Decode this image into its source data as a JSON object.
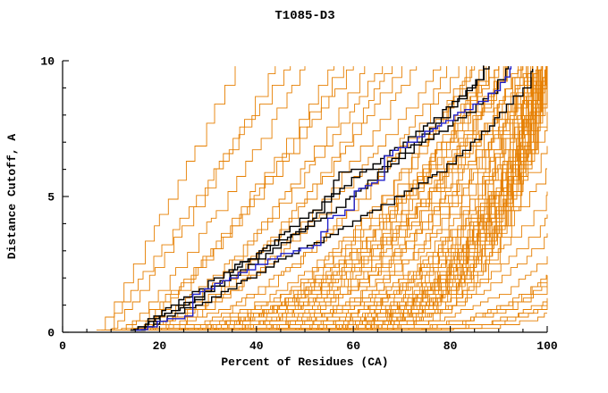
{
  "chart_data": {
    "type": "line",
    "title": "T1085-D3",
    "xlabel": "Percent of Residues (CA)",
    "ylabel": "Distance Cutoff, A",
    "xlim": [
      0,
      100
    ],
    "ylim": [
      0,
      10
    ],
    "x_ticks": [
      0,
      20,
      40,
      60,
      80,
      100
    ],
    "y_ticks": [
      0,
      5,
      10
    ],
    "x_minor_step": 5,
    "y_minor_step": 1,
    "grid": false,
    "legend": false,
    "colors": {
      "prediction_orange": "#e67f00",
      "highlight_black": "#000000",
      "highlight_blue": "#2222cc",
      "axis": "#000000",
      "background": "#ffffff"
    },
    "series_groups": {
      "orange_param_curves": {
        "format": "[x_start_percent, x_percent_at_cutoff_10, shape_exponent]",
        "curves": [
          [
            7,
            36,
            1.05
          ],
          [
            9,
            44,
            1.15
          ],
          [
            11,
            50,
            1.25
          ],
          [
            8,
            47,
            1.0
          ],
          [
            13,
            56,
            1.3
          ],
          [
            10,
            60,
            1.35
          ],
          [
            12,
            66,
            1.5
          ],
          [
            15,
            58,
            1.2
          ],
          [
            17,
            63,
            1.4
          ],
          [
            14,
            70,
            1.6
          ],
          [
            16,
            73,
            1.7
          ],
          [
            18,
            68,
            1.5
          ],
          [
            10,
            78,
            1.8
          ],
          [
            12,
            82,
            2.0
          ],
          [
            14,
            85,
            2.2
          ],
          [
            16,
            88,
            2.4
          ],
          [
            18,
            90,
            2.0
          ],
          [
            20,
            92,
            2.2
          ],
          [
            22,
            95,
            2.4
          ],
          [
            24,
            85,
            2.0
          ],
          [
            26,
            88,
            2.3
          ],
          [
            28,
            90,
            2.6
          ],
          [
            11,
            92,
            2.8
          ],
          [
            13,
            95,
            2.5
          ],
          [
            15,
            97,
            2.2
          ],
          [
            17,
            80,
            1.9
          ],
          [
            19,
            84,
            2.1
          ],
          [
            21,
            87,
            2.3
          ],
          [
            23,
            91,
            2.5
          ],
          [
            25,
            94,
            2.7
          ],
          [
            27,
            97,
            2.9
          ],
          [
            12,
            88,
            2.6
          ],
          [
            14,
            92,
            2.8
          ],
          [
            16,
            95,
            3.0
          ],
          [
            18,
            98,
            2.7
          ],
          [
            20,
            99,
            2.4
          ],
          [
            22,
            90,
            2.1
          ],
          [
            24,
            96,
            2.9
          ],
          [
            15,
            96,
            3.5
          ],
          [
            17,
            97,
            3.8
          ],
          [
            19,
            98,
            4.0
          ],
          [
            21,
            99,
            4.2
          ],
          [
            23,
            100,
            4.5
          ],
          [
            25,
            97,
            3.6
          ],
          [
            27,
            98,
            3.9
          ],
          [
            29,
            99,
            4.3
          ],
          [
            31,
            100,
            4.6
          ],
          [
            33,
            99,
            4.0
          ],
          [
            35,
            100,
            4.4
          ],
          [
            37,
            100,
            4.8
          ],
          [
            16,
            99,
            5.0
          ],
          [
            18,
            100,
            5.2
          ],
          [
            20,
            98,
            4.7
          ],
          [
            22,
            99,
            5.4
          ],
          [
            24,
            100,
            5.0
          ],
          [
            26,
            99,
            4.6
          ],
          [
            28,
            100,
            5.5
          ],
          [
            30,
            99,
            5.1
          ],
          [
            32,
            100,
            4.9
          ],
          [
            34,
            99,
            5.6
          ],
          [
            36,
            100,
            5.8
          ],
          [
            38,
            100,
            5.2
          ],
          [
            40,
            100,
            6.0
          ],
          [
            19,
            97,
            4.4
          ],
          [
            23,
            98,
            4.9
          ],
          [
            27,
            100,
            5.7
          ],
          [
            31,
            99,
            5.3
          ],
          [
            35,
            98,
            4.5
          ],
          [
            25,
            100,
            5.9
          ],
          [
            21,
            96,
            4.1
          ],
          [
            29,
            97,
            4.8
          ],
          [
            33,
            100,
            6.2
          ],
          [
            20,
            108,
            3.0
          ],
          [
            24,
            112,
            3.4
          ],
          [
            28,
            118,
            3.8
          ],
          [
            32,
            124,
            4.2
          ],
          [
            36,
            130,
            4.6
          ],
          [
            22,
            106,
            2.8
          ],
          [
            26,
            115,
            3.6
          ],
          [
            30,
            120,
            4.0
          ],
          [
            34,
            128,
            4.5
          ],
          [
            38,
            135,
            5.0
          ],
          [
            40,
            126,
            4.3
          ],
          [
            18,
            110,
            3.2
          ],
          [
            42,
            132,
            4.8
          ],
          [
            44,
            138,
            5.2
          ],
          [
            46,
            128,
            4.0
          ],
          [
            48,
            135,
            4.6
          ]
        ]
      },
      "black_curves": [
        {
          "points": [
            [
              14,
              0
            ],
            [
              20,
              0.6
            ],
            [
              25,
              1.0
            ],
            [
              30,
              1.6
            ],
            [
              35,
              2.3
            ],
            [
              40,
              2.9
            ],
            [
              45,
              3.6
            ],
            [
              50,
              4.3
            ],
            [
              55,
              5.0
            ],
            [
              60,
              5.7
            ],
            [
              65,
              6.3
            ],
            [
              70,
              7.0
            ],
            [
              75,
              7.7
            ],
            [
              80,
              8.4
            ],
            [
              85,
              9.2
            ],
            [
              88,
              9.9
            ]
          ]
        },
        {
          "points": [
            [
              15,
              0
            ],
            [
              22,
              0.8
            ],
            [
              28,
              1.3
            ],
            [
              34,
              2.0
            ],
            [
              40,
              2.7
            ],
            [
              46,
              3.4
            ],
            [
              52,
              4.3
            ],
            [
              57,
              5.9
            ],
            [
              67,
              6.1
            ],
            [
              72,
              6.8
            ],
            [
              78,
              7.4
            ],
            [
              83,
              8.1
            ],
            [
              88,
              8.8
            ],
            [
              92,
              9.8
            ]
          ]
        },
        {
          "points": [
            [
              15,
              0
            ],
            [
              23,
              0.7
            ],
            [
              31,
              1.3
            ],
            [
              39,
              2.1
            ],
            [
              47,
              2.9
            ],
            [
              54,
              3.5
            ],
            [
              60,
              4.1
            ],
            [
              66,
              4.7
            ],
            [
              72,
              5.3
            ],
            [
              78,
              6.0
            ],
            [
              83,
              6.8
            ],
            [
              88,
              7.6
            ],
            [
              92,
              8.5
            ],
            [
              95,
              9.0
            ],
            [
              97,
              9.7
            ]
          ]
        },
        {
          "points": [
            [
              14,
              0
            ],
            [
              21,
              0.9
            ],
            [
              27,
              1.5
            ],
            [
              33,
              2.2
            ],
            [
              39,
              2.8
            ],
            [
              44,
              3.3
            ],
            [
              50,
              3.9
            ],
            [
              56,
              4.5
            ],
            [
              62,
              5.4
            ],
            [
              68,
              6.4
            ],
            [
              73,
              7.1
            ],
            [
              78,
              7.9
            ],
            [
              82,
              8.7
            ],
            [
              86,
              9.4
            ],
            [
              87,
              9.9
            ]
          ]
        }
      ],
      "blue_curve": {
        "points": [
          [
            15,
            0
          ],
          [
            20,
            0.4
          ],
          [
            26,
            0.6
          ],
          [
            26.5,
            1.4
          ],
          [
            32,
            1.8
          ],
          [
            38,
            2.3
          ],
          [
            44,
            2.8
          ],
          [
            50,
            3.1
          ],
          [
            53,
            3.2
          ],
          [
            53.5,
            4.1
          ],
          [
            58,
            4.4
          ],
          [
            60.5,
            5.3
          ],
          [
            65,
            5.6
          ],
          [
            66,
            6.4
          ],
          [
            70,
            6.9
          ],
          [
            75,
            7.4
          ],
          [
            80,
            7.9
          ],
          [
            85,
            8.4
          ],
          [
            89,
            8.9
          ],
          [
            91,
            9.3
          ],
          [
            92.5,
            9.8
          ]
        ]
      }
    }
  }
}
